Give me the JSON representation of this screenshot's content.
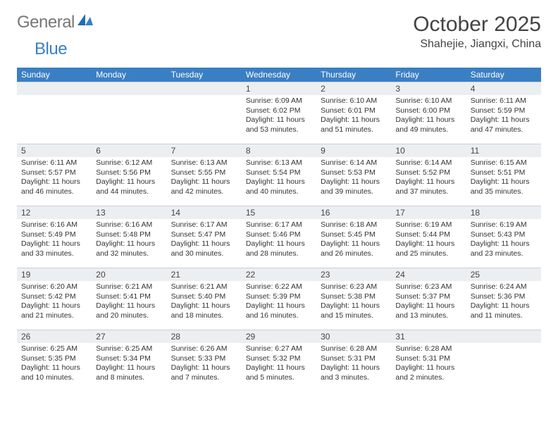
{
  "logo": {
    "general": "General",
    "blue": "Blue"
  },
  "title": "October 2025",
  "location": "Shahejie, Jiangxi, China",
  "colors": {
    "header_bg": "#3a7fc4",
    "header_fg": "#ffffff",
    "cell_head_bg": "#eceff2",
    "cell_head_border": "#c9d0d6",
    "text": "#333333",
    "logo_grey": "#777777",
    "logo_blue": "#3a7fc4"
  },
  "weekdays": [
    "Sunday",
    "Monday",
    "Tuesday",
    "Wednesday",
    "Thursday",
    "Friday",
    "Saturday"
  ],
  "weeks": [
    [
      {
        "n": "",
        "lines": []
      },
      {
        "n": "",
        "lines": []
      },
      {
        "n": "",
        "lines": []
      },
      {
        "n": "1",
        "lines": [
          "Sunrise: 6:09 AM",
          "Sunset: 6:02 PM",
          "Daylight: 11 hours",
          "and 53 minutes."
        ]
      },
      {
        "n": "2",
        "lines": [
          "Sunrise: 6:10 AM",
          "Sunset: 6:01 PM",
          "Daylight: 11 hours",
          "and 51 minutes."
        ]
      },
      {
        "n": "3",
        "lines": [
          "Sunrise: 6:10 AM",
          "Sunset: 6:00 PM",
          "Daylight: 11 hours",
          "and 49 minutes."
        ]
      },
      {
        "n": "4",
        "lines": [
          "Sunrise: 6:11 AM",
          "Sunset: 5:59 PM",
          "Daylight: 11 hours",
          "and 47 minutes."
        ]
      }
    ],
    [
      {
        "n": "5",
        "lines": [
          "Sunrise: 6:11 AM",
          "Sunset: 5:57 PM",
          "Daylight: 11 hours",
          "and 46 minutes."
        ]
      },
      {
        "n": "6",
        "lines": [
          "Sunrise: 6:12 AM",
          "Sunset: 5:56 PM",
          "Daylight: 11 hours",
          "and 44 minutes."
        ]
      },
      {
        "n": "7",
        "lines": [
          "Sunrise: 6:13 AM",
          "Sunset: 5:55 PM",
          "Daylight: 11 hours",
          "and 42 minutes."
        ]
      },
      {
        "n": "8",
        "lines": [
          "Sunrise: 6:13 AM",
          "Sunset: 5:54 PM",
          "Daylight: 11 hours",
          "and 40 minutes."
        ]
      },
      {
        "n": "9",
        "lines": [
          "Sunrise: 6:14 AM",
          "Sunset: 5:53 PM",
          "Daylight: 11 hours",
          "and 39 minutes."
        ]
      },
      {
        "n": "10",
        "lines": [
          "Sunrise: 6:14 AM",
          "Sunset: 5:52 PM",
          "Daylight: 11 hours",
          "and 37 minutes."
        ]
      },
      {
        "n": "11",
        "lines": [
          "Sunrise: 6:15 AM",
          "Sunset: 5:51 PM",
          "Daylight: 11 hours",
          "and 35 minutes."
        ]
      }
    ],
    [
      {
        "n": "12",
        "lines": [
          "Sunrise: 6:16 AM",
          "Sunset: 5:49 PM",
          "Daylight: 11 hours",
          "and 33 minutes."
        ]
      },
      {
        "n": "13",
        "lines": [
          "Sunrise: 6:16 AM",
          "Sunset: 5:48 PM",
          "Daylight: 11 hours",
          "and 32 minutes."
        ]
      },
      {
        "n": "14",
        "lines": [
          "Sunrise: 6:17 AM",
          "Sunset: 5:47 PM",
          "Daylight: 11 hours",
          "and 30 minutes."
        ]
      },
      {
        "n": "15",
        "lines": [
          "Sunrise: 6:17 AM",
          "Sunset: 5:46 PM",
          "Daylight: 11 hours",
          "and 28 minutes."
        ]
      },
      {
        "n": "16",
        "lines": [
          "Sunrise: 6:18 AM",
          "Sunset: 5:45 PM",
          "Daylight: 11 hours",
          "and 26 minutes."
        ]
      },
      {
        "n": "17",
        "lines": [
          "Sunrise: 6:19 AM",
          "Sunset: 5:44 PM",
          "Daylight: 11 hours",
          "and 25 minutes."
        ]
      },
      {
        "n": "18",
        "lines": [
          "Sunrise: 6:19 AM",
          "Sunset: 5:43 PM",
          "Daylight: 11 hours",
          "and 23 minutes."
        ]
      }
    ],
    [
      {
        "n": "19",
        "lines": [
          "Sunrise: 6:20 AM",
          "Sunset: 5:42 PM",
          "Daylight: 11 hours",
          "and 21 minutes."
        ]
      },
      {
        "n": "20",
        "lines": [
          "Sunrise: 6:21 AM",
          "Sunset: 5:41 PM",
          "Daylight: 11 hours",
          "and 20 minutes."
        ]
      },
      {
        "n": "21",
        "lines": [
          "Sunrise: 6:21 AM",
          "Sunset: 5:40 PM",
          "Daylight: 11 hours",
          "and 18 minutes."
        ]
      },
      {
        "n": "22",
        "lines": [
          "Sunrise: 6:22 AM",
          "Sunset: 5:39 PM",
          "Daylight: 11 hours",
          "and 16 minutes."
        ]
      },
      {
        "n": "23",
        "lines": [
          "Sunrise: 6:23 AM",
          "Sunset: 5:38 PM",
          "Daylight: 11 hours",
          "and 15 minutes."
        ]
      },
      {
        "n": "24",
        "lines": [
          "Sunrise: 6:23 AM",
          "Sunset: 5:37 PM",
          "Daylight: 11 hours",
          "and 13 minutes."
        ]
      },
      {
        "n": "25",
        "lines": [
          "Sunrise: 6:24 AM",
          "Sunset: 5:36 PM",
          "Daylight: 11 hours",
          "and 11 minutes."
        ]
      }
    ],
    [
      {
        "n": "26",
        "lines": [
          "Sunrise: 6:25 AM",
          "Sunset: 5:35 PM",
          "Daylight: 11 hours",
          "and 10 minutes."
        ]
      },
      {
        "n": "27",
        "lines": [
          "Sunrise: 6:25 AM",
          "Sunset: 5:34 PM",
          "Daylight: 11 hours",
          "and 8 minutes."
        ]
      },
      {
        "n": "28",
        "lines": [
          "Sunrise: 6:26 AM",
          "Sunset: 5:33 PM",
          "Daylight: 11 hours",
          "and 7 minutes."
        ]
      },
      {
        "n": "29",
        "lines": [
          "Sunrise: 6:27 AM",
          "Sunset: 5:32 PM",
          "Daylight: 11 hours",
          "and 5 minutes."
        ]
      },
      {
        "n": "30",
        "lines": [
          "Sunrise: 6:28 AM",
          "Sunset: 5:31 PM",
          "Daylight: 11 hours",
          "and 3 minutes."
        ]
      },
      {
        "n": "31",
        "lines": [
          "Sunrise: 6:28 AM",
          "Sunset: 5:31 PM",
          "Daylight: 11 hours",
          "and 2 minutes."
        ]
      },
      {
        "n": "",
        "lines": []
      }
    ]
  ]
}
